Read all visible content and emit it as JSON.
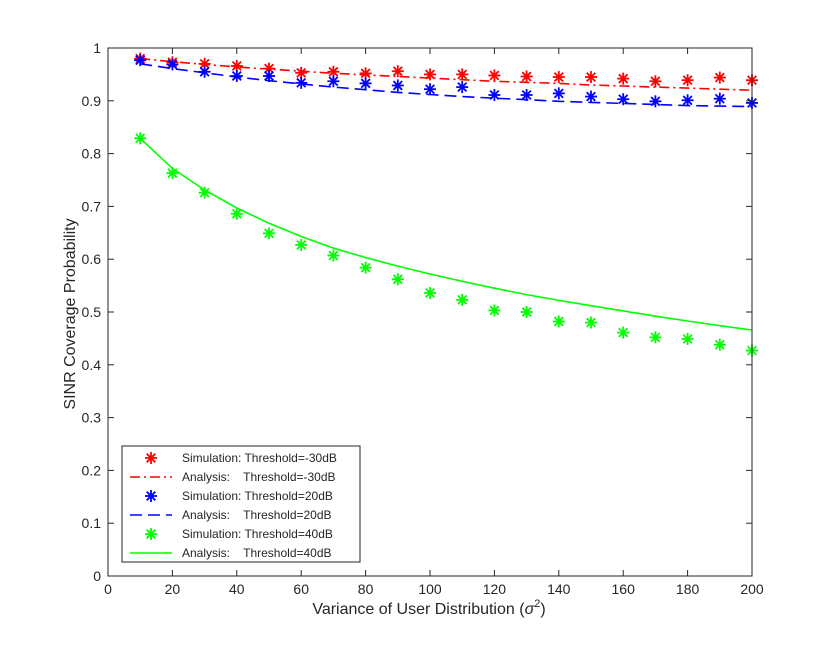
{
  "chart_data": {
    "type": "line",
    "title": "",
    "xlabel": "Variance of User Distribution (",
    "xlabel_symbol": "σ",
    "xlabel_sup": "2",
    "xlabel_close": ")",
    "ylabel": "SINR Coverage Probability",
    "xlim": [
      0,
      200
    ],
    "ylim": [
      0,
      1
    ],
    "xticks": [
      0,
      20,
      40,
      60,
      80,
      100,
      120,
      140,
      160,
      180,
      200
    ],
    "yticks": [
      0,
      0.1,
      0.2,
      0.3,
      0.4,
      0.5,
      0.6,
      0.7,
      0.8,
      0.9,
      1
    ],
    "ytick_labels": [
      "0",
      "0.1",
      "0.2",
      "0.3",
      "0.4",
      "0.5",
      "0.6",
      "0.7",
      "0.8",
      "0.9",
      "1"
    ],
    "grid": false,
    "legend_position": "bottom-left",
    "series": [
      {
        "name": "Simulation: Threshold=-30dB",
        "kind": "marker",
        "color": "#ff0000",
        "x": [
          10,
          20,
          30,
          40,
          50,
          60,
          70,
          80,
          90,
          100,
          110,
          120,
          130,
          140,
          150,
          160,
          170,
          180,
          190,
          200
        ],
        "y": [
          0.98,
          0.973,
          0.97,
          0.966,
          0.961,
          0.953,
          0.955,
          0.952,
          0.956,
          0.95,
          0.95,
          0.948,
          0.946,
          0.945,
          0.945,
          0.942,
          0.937,
          0.939,
          0.944,
          0.939
        ]
      },
      {
        "name": "Analysis:    Threshold=-30dB",
        "kind": "line",
        "dash": "dashdot",
        "color": "#ff0000",
        "x": [
          10,
          20,
          30,
          40,
          50,
          60,
          70,
          80,
          90,
          100,
          110,
          120,
          130,
          140,
          150,
          160,
          170,
          180,
          190,
          200
        ],
        "y": [
          0.98,
          0.974,
          0.969,
          0.964,
          0.96,
          0.956,
          0.952,
          0.949,
          0.946,
          0.943,
          0.94,
          0.937,
          0.935,
          0.933,
          0.93,
          0.928,
          0.926,
          0.924,
          0.922,
          0.92
        ]
      },
      {
        "name": "Simulation: Threshold=20dB",
        "kind": "marker",
        "color": "#0000ff",
        "x": [
          10,
          20,
          30,
          40,
          50,
          60,
          70,
          80,
          90,
          100,
          110,
          120,
          130,
          140,
          150,
          160,
          170,
          180,
          190,
          200
        ],
        "y": [
          0.977,
          0.969,
          0.955,
          0.947,
          0.947,
          0.934,
          0.937,
          0.933,
          0.929,
          0.922,
          0.926,
          0.911,
          0.911,
          0.914,
          0.908,
          0.903,
          0.899,
          0.901,
          0.904,
          0.896
        ]
      },
      {
        "name": "Analysis:    Threshold=20dB",
        "kind": "line",
        "dash": "dashed",
        "color": "#0000ff",
        "x": [
          10,
          20,
          30,
          40,
          50,
          60,
          70,
          80,
          90,
          100,
          110,
          120,
          130,
          140,
          150,
          160,
          170,
          180,
          190,
          200
        ],
        "y": [
          0.97,
          0.961,
          0.953,
          0.945,
          0.938,
          0.932,
          0.926,
          0.921,
          0.916,
          0.912,
          0.908,
          0.905,
          0.902,
          0.899,
          0.897,
          0.895,
          0.893,
          0.891,
          0.89,
          0.889
        ]
      },
      {
        "name": "Simulation: Threshold=40dB",
        "kind": "marker",
        "color": "#00ff00",
        "x": [
          10,
          20,
          30,
          40,
          50,
          60,
          70,
          80,
          90,
          100,
          110,
          120,
          130,
          140,
          150,
          160,
          170,
          180,
          190,
          200
        ],
        "y": [
          0.829,
          0.763,
          0.726,
          0.686,
          0.649,
          0.627,
          0.607,
          0.584,
          0.562,
          0.536,
          0.523,
          0.503,
          0.5,
          0.482,
          0.48,
          0.461,
          0.452,
          0.449,
          0.438,
          0.427
        ]
      },
      {
        "name": "Analysis:    Threshold=40dB",
        "kind": "line",
        "dash": "solid",
        "color": "#00ff00",
        "x": [
          10,
          20,
          30,
          40,
          50,
          60,
          70,
          80,
          90,
          100,
          110,
          120,
          130,
          140,
          150,
          160,
          170,
          180,
          190,
          200
        ],
        "y": [
          0.829,
          0.772,
          0.731,
          0.697,
          0.668,
          0.643,
          0.621,
          0.603,
          0.587,
          0.572,
          0.558,
          0.545,
          0.533,
          0.522,
          0.512,
          0.502,
          0.492,
          0.483,
          0.474,
          0.466
        ]
      }
    ]
  }
}
